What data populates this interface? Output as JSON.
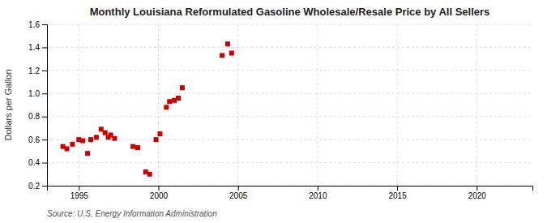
{
  "chart_data": {
    "type": "scatter",
    "title": "Monthly Louisiana Reformulated Gasoline Wholesale/Resale Price by All Sellers",
    "ylabel": "Dollars per Gallon",
    "annotations": [
      "Source: U.S. Energy Information Administration"
    ],
    "color": "#cc0000",
    "marker": "square",
    "grid": true,
    "xlim": [
      1993.0,
      2023.5
    ],
    "ylim": [
      0.2,
      1.6
    ],
    "xticks": [
      1995,
      2000,
      2005,
      2010,
      2015,
      2020
    ],
    "yticks": [
      0.2,
      0.4,
      0.6,
      0.8,
      {
        "value": 1.0,
        "label": "1.0"
      },
      1.2,
      1.4,
      1.6
    ],
    "x": [
      1994.0,
      1994.25,
      1994.6,
      1995.0,
      1995.25,
      1995.55,
      1995.75,
      1996.1,
      1996.4,
      1996.65,
      1996.85,
      1997.0,
      1997.25,
      1998.4,
      1998.7,
      1999.2,
      1999.45,
      1999.85,
      2000.1,
      2000.5,
      2000.7,
      2001.0,
      2001.25,
      2001.5,
      2004.0,
      2004.35,
      2004.6
    ],
    "values": [
      0.54,
      0.52,
      0.56,
      0.6,
      0.59,
      0.48,
      0.6,
      0.62,
      0.69,
      0.66,
      0.62,
      0.64,
      0.61,
      0.54,
      0.53,
      0.32,
      0.3,
      0.6,
      0.65,
      0.88,
      0.93,
      0.94,
      0.96,
      1.05,
      1.33,
      1.43,
      1.35
    ]
  }
}
